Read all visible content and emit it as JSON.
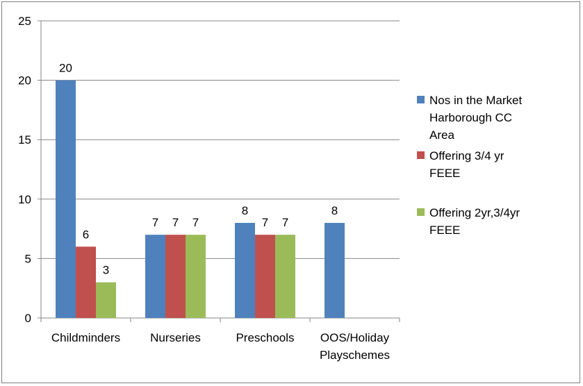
{
  "chart_data": {
    "type": "bar",
    "title": "",
    "xlabel": "",
    "ylabel": "",
    "ylim": [
      0,
      25
    ],
    "yticks": [
      0,
      5,
      10,
      15,
      20,
      25
    ],
    "grid": true,
    "legend_position": "right",
    "categories": [
      [
        "Childminders"
      ],
      [
        "Nurseries"
      ],
      [
        "Preschools"
      ],
      [
        "OOS/Holiday",
        "Playschemes"
      ]
    ],
    "series": [
      {
        "name_lines": [
          "Nos in the Market",
          "Harborough CC",
          "Area"
        ],
        "color": "#4f81bd",
        "values": [
          20,
          7,
          8,
          8
        ]
      },
      {
        "name_lines": [
          "Offering 3/4 yr",
          "FEEE"
        ],
        "color": "#c0504d",
        "values": [
          6,
          7,
          7,
          null
        ]
      },
      {
        "name_lines": [
          "Offering 2yr,3/4yr",
          "FEEE"
        ],
        "color": "#9bbb59",
        "values": [
          3,
          7,
          7,
          null
        ]
      }
    ]
  }
}
